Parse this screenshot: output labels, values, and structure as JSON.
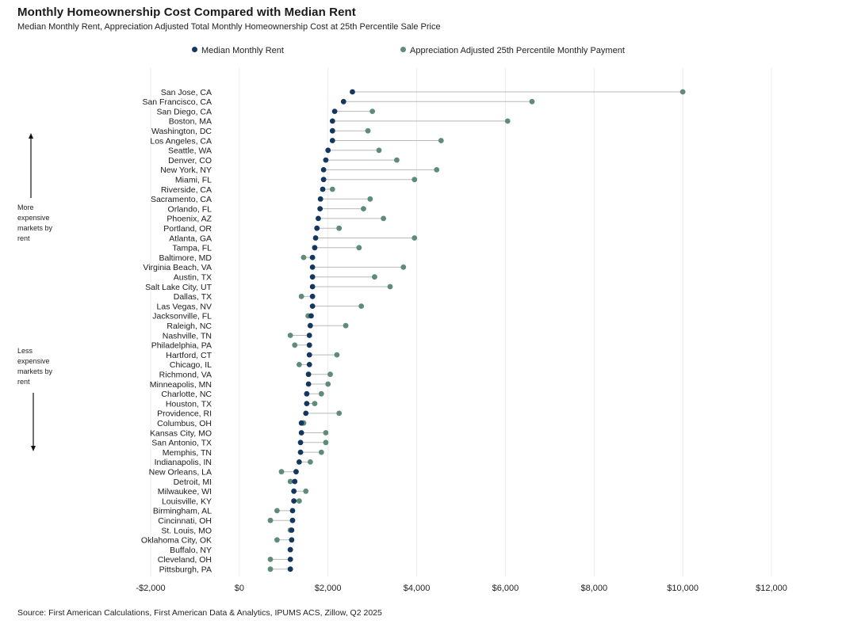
{
  "title": "Monthly Homeownership Cost Compared with Median Rent",
  "subtitle": "Median Monthly Rent, Appreciation Adjusted Total Monthly Homeownership Cost at 25th Percentile Sale Price",
  "side_notes": {
    "top": "More expensive markets by rent",
    "bottom": "Less expensive markets by rent"
  },
  "source": "Source: First American Calculations, First American Data & Analytics, IPUMS ACS, Zillow, Q2 2025",
  "colors": {
    "rent": "#14375f",
    "payment": "#5f8c78",
    "connector": "#b8b8b8",
    "grid": "#ececec"
  },
  "chart_data": {
    "type": "dot-plot",
    "title": "Monthly Homeownership Cost Compared with Median Rent",
    "subtitle": "Median Monthly Rent, Appreciation Adjusted Total Monthly Homeownership Cost at 25th Percentile Sale Price",
    "xlim": [
      -2000,
      12000
    ],
    "xticks": [
      -2000,
      0,
      2000,
      4000,
      6000,
      8000,
      10000,
      12000
    ],
    "xtick_labels": [
      "-$2,000",
      "$0",
      "$2,000",
      "$4,000",
      "$6,000",
      "$8,000",
      "$10,000",
      "$12,000"
    ],
    "grid": "vertical",
    "legend_position": "top",
    "series": [
      {
        "name": "Median Monthly Rent",
        "color": "#14375f"
      },
      {
        "name": "Appreciation Adjusted 25th Percentile Monthly Payment",
        "color": "#5f8c78"
      }
    ],
    "categories": [
      "San Jose, CA",
      "San Francisco, CA",
      "San Diego, CA",
      "Boston, MA",
      "Washington, DC",
      "Los Angeles, CA",
      "Seattle, WA",
      "Denver, CO",
      "New York, NY",
      "Miami, FL",
      "Riverside, CA",
      "Sacramento, CA",
      "Orlando, FL",
      "Phoenix, AZ",
      "Portland, OR",
      "Atlanta, GA",
      "Tampa, FL",
      "Baltimore, MD",
      "Virginia Beach, VA",
      "Austin, TX",
      "Salt Lake City, UT",
      "Dallas, TX",
      "Las Vegas, NV",
      "Jacksonville, FL",
      "Raleigh, NC",
      "Nashville, TN",
      "Philadelphia, PA",
      "Hartford, CT",
      "Chicago, IL",
      "Richmond, VA",
      "Minneapolis, MN",
      "Charlotte, NC",
      "Houston, TX",
      "Providence, RI",
      "Columbus, OH",
      "Kansas City, MO",
      "San Antonio, TX",
      "Memphis, TN",
      "Indianapolis, IN",
      "New Orleans, LA",
      "Detroit, MI",
      "Milwaukee, WI",
      "Louisville, KY",
      "Birmingham, AL",
      "Cincinnati, OH",
      "St. Louis, MO",
      "Oklahoma City, OK",
      "Buffalo, NY",
      "Cleveland, OH",
      "Pittsburgh, PA"
    ],
    "rent": [
      2550,
      2350,
      2150,
      2100,
      2100,
      2100,
      2000,
      1950,
      1900,
      1900,
      1880,
      1830,
      1820,
      1780,
      1750,
      1720,
      1700,
      1650,
      1650,
      1650,
      1650,
      1650,
      1650,
      1620,
      1600,
      1580,
      1580,
      1580,
      1580,
      1560,
      1560,
      1520,
      1520,
      1500,
      1400,
      1400,
      1380,
      1380,
      1350,
      1280,
      1250,
      1230,
      1230,
      1200,
      1200,
      1180,
      1180,
      1150,
      1150,
      1150
    ],
    "payment": [
      10000,
      6600,
      3000,
      6050,
      2900,
      4550,
      3150,
      3550,
      4450,
      3950,
      2100,
      2950,
      2800,
      3250,
      2250,
      3950,
      2700,
      1450,
      3700,
      3050,
      3400,
      1400,
      2750,
      1550,
      2400,
      1150,
      1250,
      2200,
      1350,
      2050,
      2000,
      1850,
      1700,
      2250,
      1450,
      1950,
      1950,
      1850,
      1600,
      950,
      1150,
      1500,
      1350,
      850,
      700,
      1150,
      850,
      1150,
      700,
      700
    ]
  }
}
